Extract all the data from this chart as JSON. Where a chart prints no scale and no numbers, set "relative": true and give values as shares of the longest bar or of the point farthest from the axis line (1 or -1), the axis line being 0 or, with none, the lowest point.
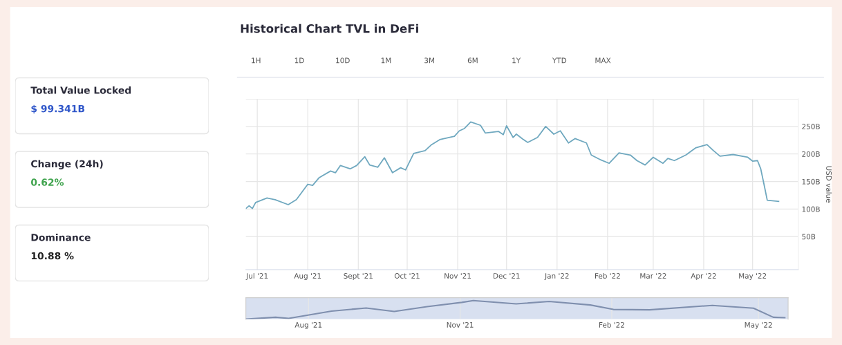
{
  "chart_data": [
    {
      "type": "other",
      "annotations": [
        "Total Value Locked",
        "$ 99.341B",
        "Change (24h)",
        "0.62%",
        "Dominance",
        "10.88 %"
      ]
    },
    {
      "type": "line",
      "title": "Historical Chart TVL in DeFi",
      "ylabel": "USD value",
      "annotations": [
        "1H",
        "1D",
        "10D",
        "1M",
        "3M",
        "6M",
        "1Y",
        "YTD",
        "MAX"
      ],
      "x": [
        "2021-06-24",
        "2021-06-26",
        "2021-06-28",
        "2021-06-30",
        "2021-07-07",
        "2021-07-12",
        "2021-07-20",
        "2021-07-25",
        "2021-08-01",
        "2021-08-04",
        "2021-08-08",
        "2021-08-15",
        "2021-08-18",
        "2021-08-21",
        "2021-08-27",
        "2021-08-31",
        "2021-09-05",
        "2021-09-08",
        "2021-09-13",
        "2021-09-17",
        "2021-09-22",
        "2021-09-27",
        "2021-09-30",
        "2021-10-05",
        "2021-10-12",
        "2021-10-16",
        "2021-10-21",
        "2021-10-30",
        "2021-11-02",
        "2021-11-05",
        "2021-11-09",
        "2021-11-15",
        "2021-11-18",
        "2021-11-26",
        "2021-11-29",
        "2021-12-01",
        "2021-12-05",
        "2021-12-07",
        "2021-12-11",
        "2021-12-14",
        "2021-12-20",
        "2021-12-25",
        "2021-12-30",
        "2022-01-03",
        "2022-01-08",
        "2022-01-12",
        "2022-01-19",
        "2022-01-22",
        "2022-01-28",
        "2022-02-02",
        "2022-02-08",
        "2022-02-15",
        "2022-02-19",
        "2022-02-24",
        "2022-03-01",
        "2022-03-07",
        "2022-03-10",
        "2022-03-14",
        "2022-03-21",
        "2022-03-27",
        "2022-04-03",
        "2022-04-07",
        "2022-04-11",
        "2022-04-19",
        "2022-04-28",
        "2022-05-01",
        "2022-05-04",
        "2022-05-06",
        "2022-05-08",
        "2022-05-10",
        "2022-05-17"
      ],
      "series": [
        {
          "color": "#6fa8bf",
          "values": [
            101,
            106,
            101,
            112,
            120,
            117,
            108,
            117,
            145,
            143,
            157,
            169,
            166,
            179,
            173,
            179,
            195,
            180,
            176,
            193,
            166,
            175,
            171,
            201,
            206,
            217,
            226,
            232,
            242,
            246,
            258,
            252,
            238,
            241,
            235,
            251,
            230,
            236,
            227,
            221,
            230,
            250,
            236,
            242,
            220,
            228,
            220,
            198,
            189,
            183,
            202,
            198,
            188,
            180,
            194,
            183,
            192,
            188,
            198,
            211,
            217,
            206,
            196,
            199,
            194,
            187,
            188,
            173,
            145,
            116,
            114
          ]
        }
      ],
      "xlim": [
        "2021-06-24",
        "2022-05-29"
      ],
      "xticks": [
        {
          "value": "2021-07-01",
          "label": "Jul '21"
        },
        {
          "value": "2021-08-01",
          "label": "Aug '21"
        },
        {
          "value": "2021-09-01",
          "label": "Sept '21"
        },
        {
          "value": "2021-10-01",
          "label": "Oct '21"
        },
        {
          "value": "2021-11-01",
          "label": "Nov '21"
        },
        {
          "value": "2021-12-01",
          "label": "Dec '21"
        },
        {
          "value": "2022-01-01",
          "label": "Jan '22"
        },
        {
          "value": "2022-02-01",
          "label": "Feb '22"
        },
        {
          "value": "2022-03-01",
          "label": "Mar '22"
        },
        {
          "value": "2022-04-01",
          "label": "Apr '22"
        },
        {
          "value": "2022-05-01",
          "label": "May '22"
        }
      ],
      "ylim": [
        -10,
        300
      ],
      "yticks": [
        {
          "value": 50,
          "label": "50B"
        },
        {
          "value": 100,
          "label": "100B"
        },
        {
          "value": 150,
          "label": "150B"
        },
        {
          "value": 200,
          "label": "200B"
        },
        {
          "value": 250,
          "label": "250B"
        },
        {
          "value": 300,
          "label": null
        }
      ],
      "grid": true,
      "legend": false
    },
    {
      "type": "line",
      "relative": true,
      "x": [
        "2021-06-24",
        "2021-07-12",
        "2021-07-20",
        "2021-08-15",
        "2021-09-05",
        "2021-09-22",
        "2021-10-12",
        "2021-11-02",
        "2021-11-09",
        "2021-12-05",
        "2021-12-25",
        "2022-01-19",
        "2022-02-02",
        "2022-02-24",
        "2022-04-03",
        "2022-04-28",
        "2022-05-10",
        "2022-05-17"
      ],
      "series": [
        {
          "color": "#7f8fae",
          "values": [
            0.0,
            0.1,
            0.04,
            0.43,
            0.6,
            0.41,
            0.67,
            0.9,
            1.0,
            0.82,
            0.95,
            0.76,
            0.52,
            0.5,
            0.74,
            0.59,
            0.1,
            0.08
          ]
        }
      ],
      "xlim": [
        "2021-06-24",
        "2022-05-19"
      ],
      "xticks": [
        {
          "value": "2021-08-01",
          "label": "Aug '21"
        },
        {
          "value": "2021-11-01",
          "label": "Nov '21"
        },
        {
          "value": "2022-02-01",
          "label": "Feb '22"
        },
        {
          "value": "2022-05-01",
          "label": "May '22"
        }
      ],
      "grid": "x",
      "legend": false
    }
  ]
}
